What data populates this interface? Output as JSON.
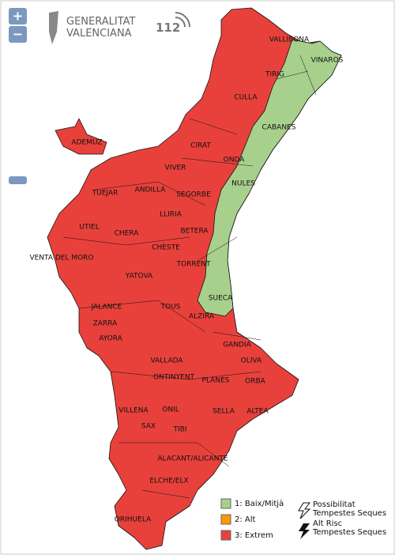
{
  "controls": {
    "zoom_in": "+",
    "zoom_out": "−"
  },
  "logo": {
    "line1": "GENERALITAT",
    "line2": "VALENCIANA",
    "emergency": "112"
  },
  "places": [
    "VALLIBONA",
    "VINAROS",
    "TIRIG",
    "CULLA",
    "CABANES",
    "ADEMUZ",
    "CIRAT",
    "VIVER",
    "ONDA",
    "NULES",
    "TUEJAR",
    "ANDILLA",
    "SEGORBE",
    "LLIRIA",
    "UTIEL",
    "CHERA",
    "BETERA",
    "VENTA DEL MORO",
    "CHESTE",
    "TORRENT",
    "YATOVA",
    "SUECA",
    "JALANCE",
    "TOUS",
    "ALZIRA",
    "ZARRA",
    "AYORA",
    "GANDIA",
    "VALLADA",
    "OLIVA",
    "ONTINYENT",
    "PLANES",
    "ORBA",
    "SELLA",
    "ALTEA",
    "VILLENA",
    "ONIL",
    "SAX",
    "TIBI",
    "ALACANT/ALICANTE",
    "ELCHE/ELX",
    "ORIHUELA"
  ],
  "legend": {
    "items": [
      {
        "label": "1: Baix/Mitjà",
        "color": "#a8d08d"
      },
      {
        "label": "2: Alt",
        "color": "#ff9900"
      },
      {
        "label": "3: Extrem",
        "color": "#e8413c"
      }
    ],
    "storm": [
      {
        "lines": [
          "Possibilitat",
          "Tempestes Seques"
        ]
      },
      {
        "lines": [
          "Alt Risc",
          "Tempestes Seques"
        ]
      }
    ]
  }
}
